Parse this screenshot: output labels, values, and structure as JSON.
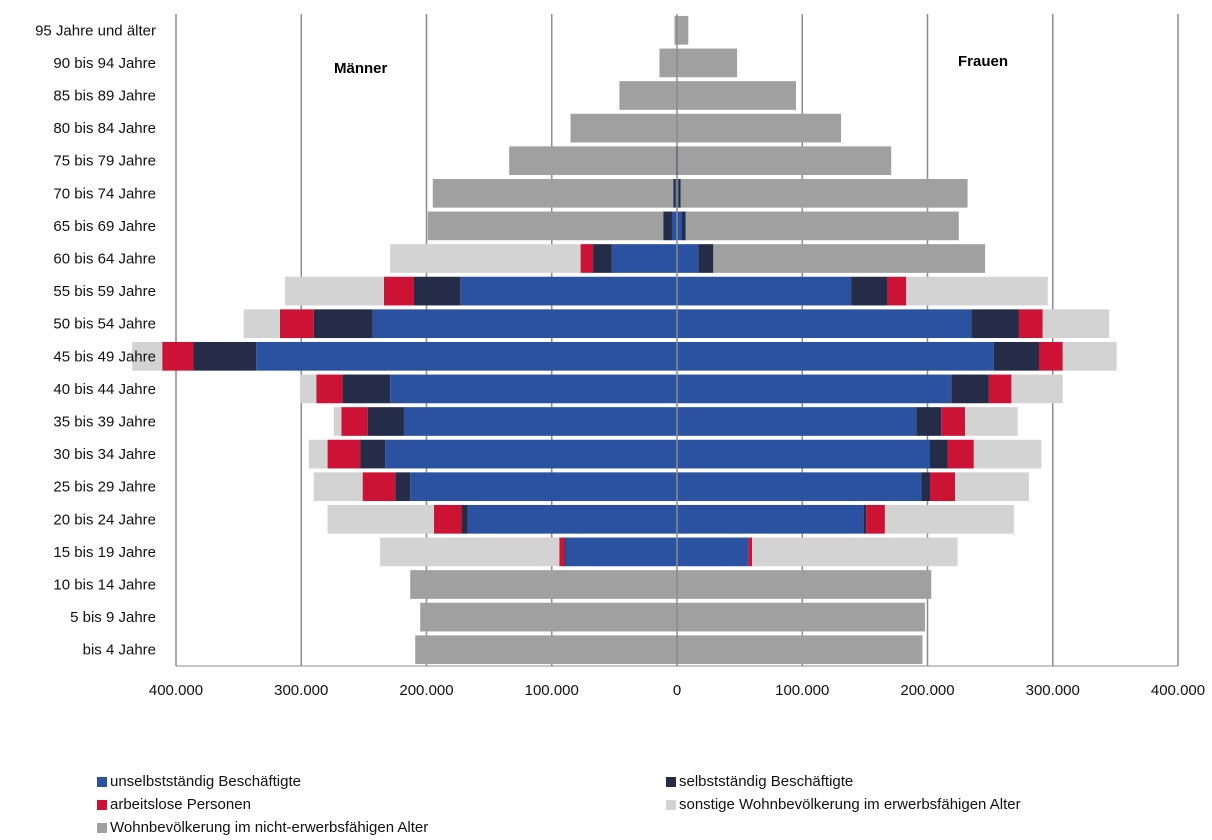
{
  "chart_data": {
    "type": "bar",
    "orientation": "horizontal-population-pyramid",
    "left_group_label": "Männer",
    "right_group_label": "Frauen",
    "x_ticks": [
      "400.000",
      "300.000",
      "200.000",
      "100.000",
      "0",
      "100.000",
      "200.000",
      "300.000",
      "400.000"
    ],
    "xlim": [
      -400000,
      400000
    ],
    "grid": true,
    "legend_position": "bottom",
    "categories": [
      "95 Jahre und älter",
      "90 bis 94 Jahre",
      "85 bis 89 Jahre",
      "80 bis 84 Jahre",
      "75 bis 79 Jahre",
      "70 bis 74 Jahre",
      "65 bis 69 Jahre",
      "60 bis 64 Jahre",
      "55 bis 59 Jahre",
      "50 bis 54 Jahre",
      "45 bis 49 Jahre",
      "40 bis 44 Jahre",
      "35 bis 39 Jahre",
      "30 bis 34 Jahre",
      "25 bis 29 Jahre",
      "20 bis 24 Jahre",
      "15 bis 19 Jahre",
      "10 bis 14 Jahre",
      "5 bis 9 Jahre",
      "bis 4 Jahre"
    ],
    "series": [
      {
        "name": "unselbstständig Beschäftigte",
        "color": "#2a52a0",
        "male": [
          0,
          0,
          0,
          0,
          0,
          1000,
          4000,
          52000,
          173000,
          243000,
          336000,
          229000,
          218000,
          233000,
          213000,
          167000,
          89000,
          0,
          0,
          0
        ],
        "female": [
          0,
          0,
          0,
          0,
          0,
          1000,
          4000,
          17000,
          139000,
          235000,
          253000,
          219000,
          191000,
          202000,
          195000,
          149000,
          57000,
          0,
          0,
          0
        ]
      },
      {
        "name": "selbstständig Beschäftigte",
        "color": "#252c48",
        "male": [
          0,
          0,
          0,
          0,
          1000,
          2000,
          7000,
          15000,
          37000,
          47000,
          50000,
          38000,
          29000,
          20000,
          12000,
          5000,
          1000,
          0,
          0,
          0
        ],
        "female": [
          0,
          0,
          0,
          0,
          1000,
          2000,
          3000,
          12000,
          29000,
          38000,
          36000,
          30000,
          20000,
          14000,
          7000,
          2000,
          0,
          0,
          0,
          0
        ]
      },
      {
        "name": "arbeitslose Personen",
        "color": "#cc1336",
        "male": [
          0,
          0,
          0,
          0,
          0,
          0,
          0,
          10000,
          24000,
          27000,
          25000,
          21000,
          21000,
          26000,
          26000,
          22000,
          4000,
          0,
          0,
          0
        ],
        "female": [
          0,
          0,
          0,
          0,
          0,
          0,
          0,
          0,
          15000,
          19000,
          19000,
          18000,
          19000,
          21000,
          20000,
          15000,
          3000,
          0,
          0,
          0
        ]
      },
      {
        "name": "sonstige Wohnbevölkerung im erwerbsfähigen Alter",
        "color": "#d3d3d3",
        "male": [
          0,
          0,
          0,
          0,
          0,
          0,
          0,
          152000,
          79000,
          29000,
          24000,
          13000,
          6000,
          15000,
          39000,
          85000,
          143000,
          0,
          0,
          0
        ],
        "female": [
          0,
          0,
          0,
          0,
          0,
          0,
          0,
          0,
          113000,
          53000,
          43000,
          41000,
          42000,
          54000,
          59000,
          103000,
          164000,
          0,
          0,
          0
        ]
      },
      {
        "name": "Wohnbevölkerung im nicht-erwerbsfähigen Alter",
        "color": "#a0a0a0",
        "male": [
          2000,
          14000,
          46000,
          85000,
          133000,
          192000,
          188000,
          0,
          0,
          0,
          0,
          0,
          0,
          0,
          0,
          0,
          0,
          213000,
          205000,
          209000
        ],
        "female": [
          9000,
          48000,
          95000,
          131000,
          170000,
          229000,
          218000,
          217000,
          0,
          0,
          0,
          0,
          0,
          0,
          0,
          0,
          0,
          203000,
          198000,
          196000
        ]
      }
    ]
  }
}
